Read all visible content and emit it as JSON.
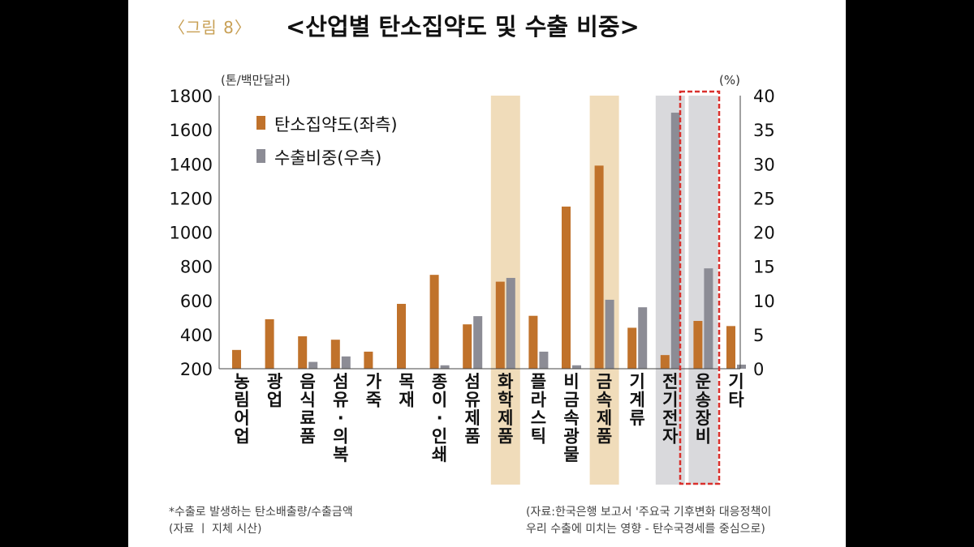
{
  "figure_label": "〈그림 8〉",
  "title": "<산업별 탄소집약도 및 수출 비중>",
  "left_unit": "(톤/백만달러)",
  "right_unit": "(%)",
  "notes": {
    "left_line1": "*수출로 발생하는 탄소배출량/수출금액",
    "left_line2": "(자료 ㅣ 지체 시산)",
    "right_line1": "(자료:한국은행 보고서 '주요국 기후변화 대응정책이",
    "right_line2": "우리 수출에 미치는 영향 - 탄수국경세를 중심으로)"
  },
  "colors": {
    "carbon": "#c0722b",
    "export": "#8c8c95",
    "highlight_tan": "#f0dcba",
    "highlight_gray": "#d9d9dc",
    "red_box": "#d9302c"
  },
  "chart_data": {
    "type": "bar",
    "categories": [
      "농림어업",
      "광업",
      "음식료품",
      "섬유·의복",
      "가죽",
      "목재",
      "종이·인쇄",
      "섬유제품",
      "화학제품",
      "플라스틱",
      "비금속광물",
      "금속제품",
      "기계류",
      "전기전자",
      "운송장비",
      "기타"
    ],
    "series": [
      {
        "name": "탄소집약도(좌측)",
        "axis": "left",
        "values": [
          310,
          490,
          390,
          370,
          300,
          580,
          750,
          460,
          710,
          510,
          1150,
          1390,
          440,
          280,
          480,
          450
        ]
      },
      {
        "name": "수출비중(우측)",
        "axis": "right",
        "values": [
          0,
          0,
          1.0,
          1.8,
          0,
          0,
          0.5,
          7.7,
          13.3,
          2.5,
          0.5,
          10.1,
          9.0,
          37.5,
          14.7,
          0.6
        ]
      }
    ],
    "y_left": {
      "lim": [
        200,
        1800
      ],
      "ticks": [
        200,
        400,
        600,
        800,
        1000,
        1200,
        1400,
        1600,
        1800
      ]
    },
    "y_right": {
      "lim": [
        0,
        40
      ],
      "ticks": [
        0,
        5,
        10,
        15,
        20,
        25,
        30,
        35,
        40
      ]
    },
    "highlighted_tan": [
      "화학제품",
      "금속제품"
    ],
    "highlighted_gray": [
      "전기전자",
      "운송장비"
    ],
    "boxed": [
      "운송장비"
    ],
    "legend_position": "top-left",
    "grid": false
  }
}
